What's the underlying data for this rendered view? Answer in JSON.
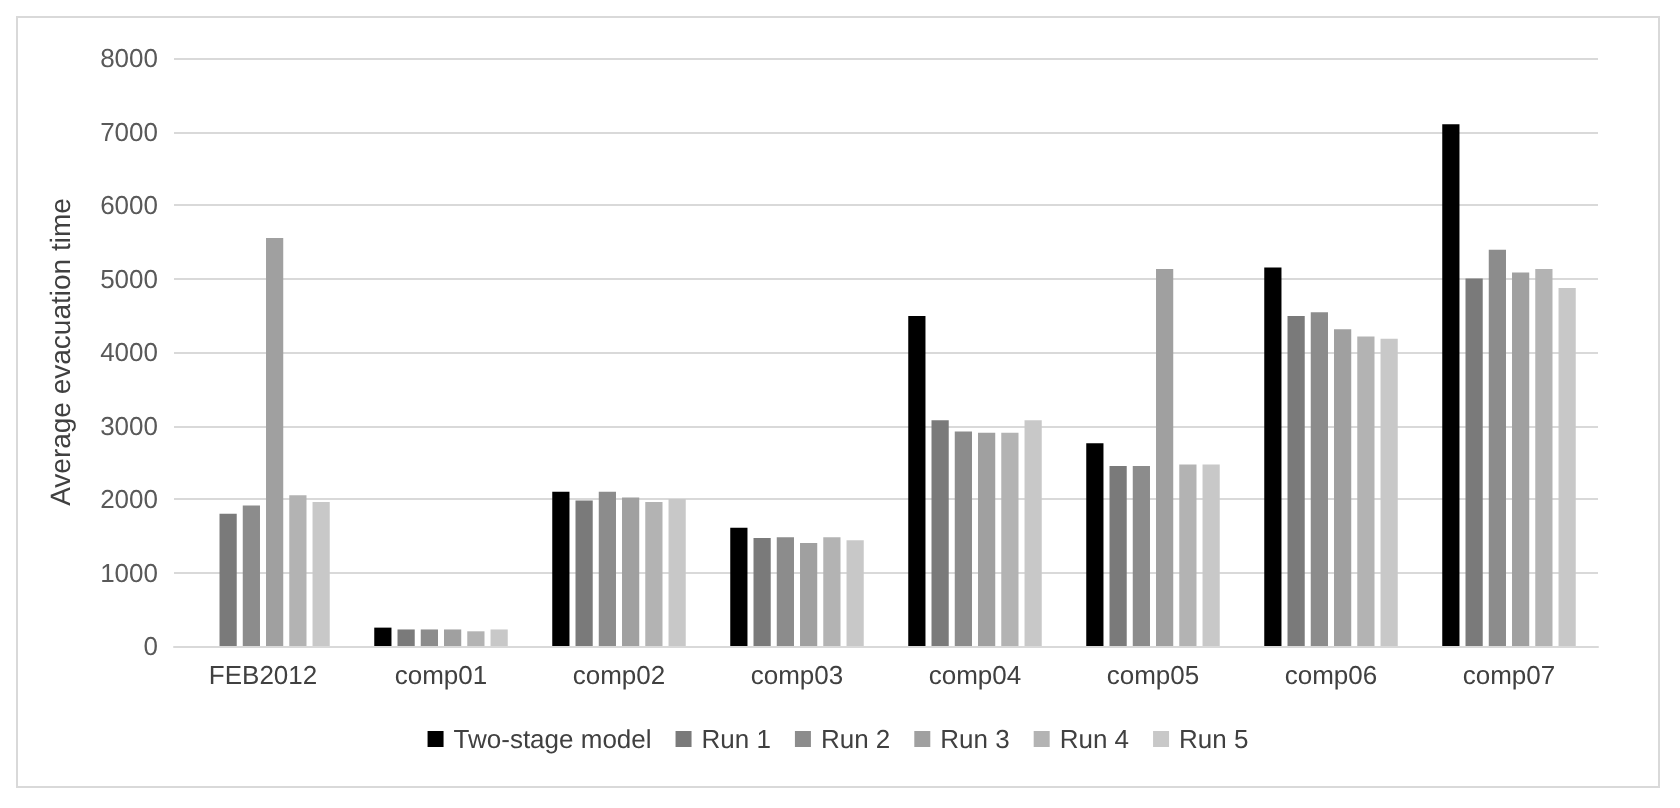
{
  "chart_data": {
    "type": "bar",
    "ylabel": "Average evacuation time",
    "categories": [
      "FEB2012",
      "comp01",
      "comp02",
      "comp03",
      "comp04",
      "comp05",
      "comp06",
      "comp07"
    ],
    "series": [
      {
        "name": "Two-stage model",
        "color": "#000000",
        "values": [
          null,
          250,
          2100,
          1610,
          4490,
          2760,
          5150,
          7100
        ]
      },
      {
        "name": "Run 1",
        "color": "#7a7a7a",
        "values": [
          1800,
          225,
          1980,
          1470,
          3070,
          2450,
          4490,
          5000
        ]
      },
      {
        "name": "Run 2",
        "color": "#8c8c8c",
        "values": [
          1910,
          225,
          2100,
          1480,
          2920,
          2450,
          4540,
          5390
        ]
      },
      {
        "name": "Run 3",
        "color": "#a0a0a0",
        "values": [
          5550,
          225,
          2020,
          1400,
          2900,
          5130,
          4310,
          5080
        ]
      },
      {
        "name": "Run 4",
        "color": "#b3b3b3",
        "values": [
          2050,
          200,
          1960,
          1480,
          2900,
          2470,
          4210,
          5130
        ]
      },
      {
        "name": "Run 5",
        "color": "#c8c8c8",
        "values": [
          1960,
          225,
          2000,
          1440,
          3070,
          2470,
          4180,
          4870
        ]
      }
    ],
    "ylim": [
      0,
      8000
    ],
    "yticks": [
      0,
      1000,
      2000,
      3000,
      4000,
      5000,
      6000,
      7000,
      8000
    ],
    "grid": "y",
    "legend": "bottom"
  }
}
